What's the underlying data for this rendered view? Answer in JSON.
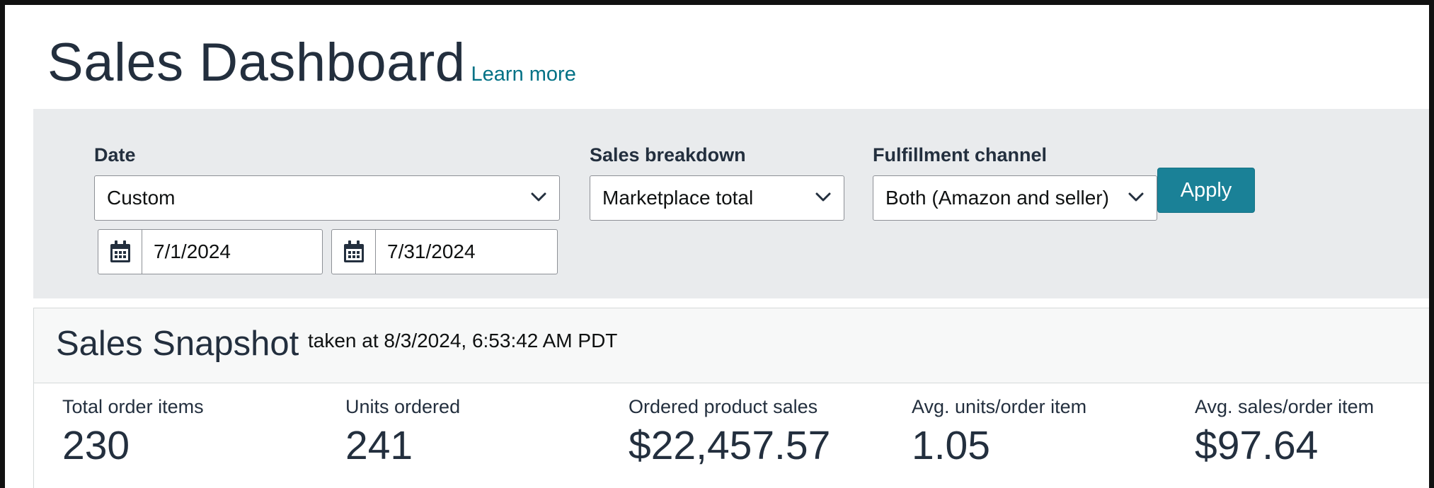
{
  "header": {
    "title": "Sales Dashboard",
    "learn_more": "Learn more"
  },
  "filters": {
    "date": {
      "label": "Date",
      "selected": "Custom",
      "start_date": "7/1/2024",
      "end_date": "7/31/2024"
    },
    "sales_breakdown": {
      "label": "Sales breakdown",
      "selected": "Marketplace total"
    },
    "fulfillment_channel": {
      "label": "Fulfillment channel",
      "selected": "Both (Amazon and seller)"
    },
    "apply_label": "Apply"
  },
  "snapshot": {
    "title": "Sales Snapshot",
    "taken_at": "taken at 8/3/2024, 6:53:42 AM PDT",
    "metrics": [
      {
        "label": "Total order items",
        "value": "230"
      },
      {
        "label": "Units ordered",
        "value": "241"
      },
      {
        "label": "Ordered product sales",
        "value": "$22,457.57"
      },
      {
        "label": "Avg. units/order item",
        "value": "1.05"
      },
      {
        "label": "Avg. sales/order item",
        "value": "$97.64"
      }
    ]
  },
  "colors": {
    "accent": "#007185",
    "apply_button": "#1a8197",
    "panel_bg": "#e9ebed",
    "text": "#232f3e"
  },
  "icons": [
    "chevron-down-icon",
    "calendar-icon"
  ]
}
